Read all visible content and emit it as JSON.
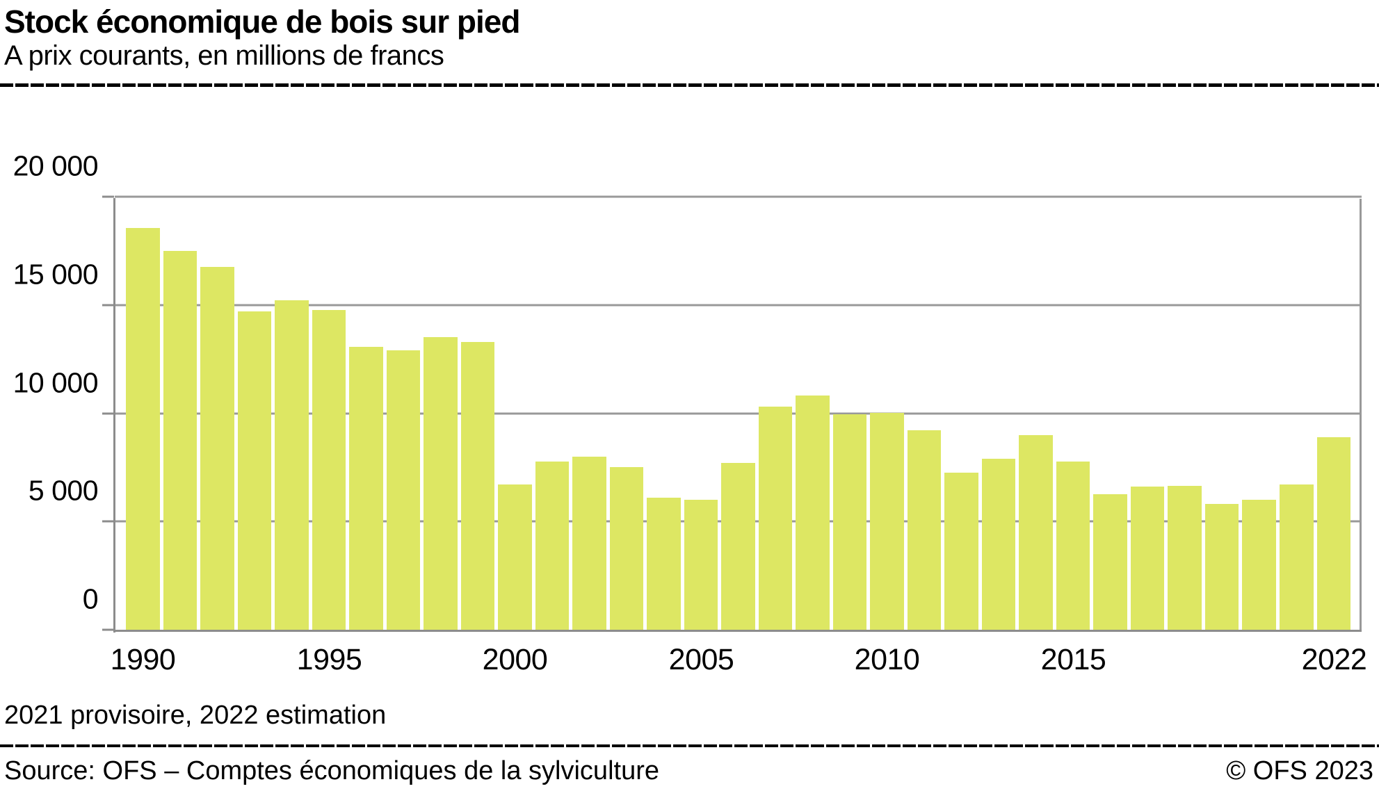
{
  "header": {
    "title": "Stock économique de bois sur pied",
    "subtitle": "A prix courants, en millions de francs"
  },
  "chart_data": {
    "type": "bar",
    "title": "Stock économique de bois sur pied",
    "subtitle": "A prix courants, en millions de francs",
    "unit": "millions de francs",
    "categories": [
      "1990",
      "1991",
      "1992",
      "1993",
      "1994",
      "1995",
      "1996",
      "1997",
      "1998",
      "1999",
      "2000",
      "2001",
      "2002",
      "2003",
      "2004",
      "2005",
      "2006",
      "2007",
      "2008",
      "2009",
      "2010",
      "2011",
      "2012",
      "2013",
      "2014",
      "2015",
      "2016",
      "2017",
      "2018",
      "2019",
      "2020",
      "2021",
      "2022"
    ],
    "values": [
      18650,
      17600,
      16850,
      14800,
      15300,
      14850,
      13150,
      13000,
      13600,
      13400,
      6800,
      7850,
      8100,
      7600,
      6200,
      6100,
      7800,
      10400,
      10900,
      10050,
      10100,
      9300,
      7350,
      8000,
      9100,
      7850,
      6350,
      6700,
      6750,
      5900,
      6100,
      6800,
      9000
    ],
    "xlabel": "",
    "ylabel": "",
    "ylim": [
      0,
      20000
    ],
    "grid": "horizontal",
    "bar_color": "#dde763",
    "grid_color": "#999999",
    "axis_color": "#8c8c8c",
    "yticks": [
      {
        "value": 0,
        "label": "0"
      },
      {
        "value": 5000,
        "label": "5 000"
      },
      {
        "value": 10000,
        "label": "10 000"
      },
      {
        "value": 15000,
        "label": "15 000"
      },
      {
        "value": 20000,
        "label": "20 000"
      }
    ],
    "xticks": [
      {
        "index": 0,
        "label": "1990"
      },
      {
        "index": 5,
        "label": "1995"
      },
      {
        "index": 10,
        "label": "2000"
      },
      {
        "index": 15,
        "label": "2005"
      },
      {
        "index": 20,
        "label": "2010"
      },
      {
        "index": 25,
        "label": "2015"
      },
      {
        "index": 32,
        "label": "2022"
      }
    ]
  },
  "footer": {
    "note": "2021 provisoire, 2022 estimation",
    "source": "Source: OFS – Comptes économiques de la sylviculture",
    "copyright": "© OFS 2023"
  }
}
